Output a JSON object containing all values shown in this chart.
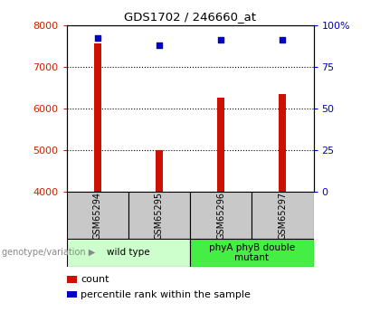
{
  "title": "GDS1702 / 246660_at",
  "samples": [
    "GSM65294",
    "GSM65295",
    "GSM65296",
    "GSM65297"
  ],
  "counts": [
    7550,
    5000,
    6250,
    6350
  ],
  "percentile_ranks": [
    92,
    88,
    91,
    91
  ],
  "ylim_left": [
    4000,
    8000
  ],
  "ylim_right": [
    0,
    100
  ],
  "yticks_left": [
    4000,
    5000,
    6000,
    7000,
    8000
  ],
  "yticks_right": [
    0,
    25,
    50,
    75,
    100
  ],
  "bar_color": "#cc1100",
  "dot_color": "#0000cc",
  "bar_width": 0.12,
  "groups": [
    {
      "label": "wild type",
      "indices": [
        0,
        1
      ],
      "color": "#ccffcc"
    },
    {
      "label": "phyA phyB double\nmutant",
      "indices": [
        2,
        3
      ],
      "color": "#44ee44"
    }
  ],
  "xlabel_group": "genotype/variation",
  "legend_count": "count",
  "legend_percentile": "percentile rank within the sample",
  "background_color": "#ffffff",
  "plot_bg": "#ffffff",
  "tick_color_left": "#cc2200",
  "tick_color_right": "#0000cc",
  "sample_cell_color": "#c8c8c8",
  "arrow_color": "#888888"
}
